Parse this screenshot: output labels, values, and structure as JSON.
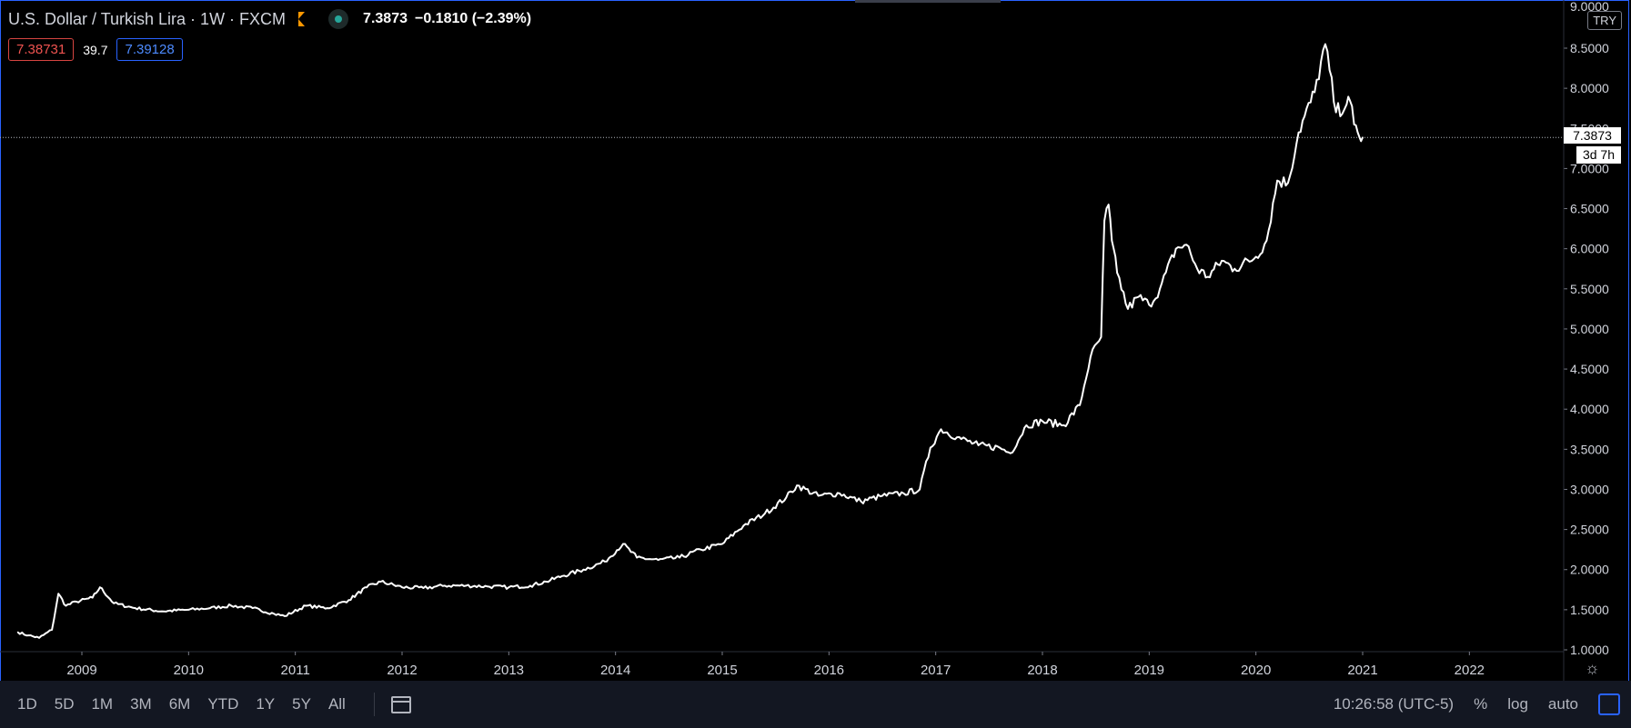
{
  "header": {
    "title": "U.S. Dollar / Turkish Lira · 1W · FXCM",
    "last_price": "7.3873",
    "change": "−0.1810 (−2.39%)",
    "bid": "7.38731",
    "spread": "39.7",
    "ask": "7.39128",
    "currency_badge": "TRY"
  },
  "price_scale": {
    "current_price_label": "7.3873",
    "countdown_label": "3d 7h",
    "axis_top_partial": "9.0000"
  },
  "bottom_toolbar": {
    "ranges": [
      "1D",
      "5D",
      "1M",
      "3M",
      "6M",
      "YTD",
      "1Y",
      "5Y",
      "All"
    ],
    "clock": "10:26:58 (UTC-5)",
    "percent_label": "%",
    "log_label": "log",
    "auto_label": "auto"
  },
  "colors": {
    "background": "#000000",
    "line": "#ffffff",
    "accent_border": "#2962ff",
    "bid": "#ef5350",
    "ask": "#2962ff",
    "flag": "#ff9800",
    "status_dot": "#26a69a"
  },
  "icons": [
    "flag-icon",
    "market-status-dot-icon",
    "calendar-range-icon",
    "gear-icon",
    "fullscreen-icon"
  ],
  "chart_data": {
    "type": "line",
    "title": "U.S. Dollar / Turkish Lira · 1W · FXCM",
    "xlabel": "",
    "ylabel": "",
    "ylim": [
      1.0,
      9.0
    ],
    "xlim": [
      2008.35,
      2022.5
    ],
    "y_ticks": [
      "1.0000",
      "1.5000",
      "2.0000",
      "2.5000",
      "3.0000",
      "3.5000",
      "4.0000",
      "4.5000",
      "5.0000",
      "5.5000",
      "6.0000",
      "6.5000",
      "7.0000",
      "7.5000",
      "8.0000",
      "8.5000"
    ],
    "x_ticks": [
      "2009",
      "2010",
      "2011",
      "2012",
      "2013",
      "2014",
      "2015",
      "2016",
      "2017",
      "2018",
      "2019",
      "2020",
      "2021",
      "2022"
    ],
    "grid": false,
    "current_price": 7.3873,
    "series": [
      {
        "x": [
          2008.4,
          2008.5,
          2008.6,
          2008.72,
          2008.78,
          2008.85,
          2008.95,
          2009.1,
          2009.17,
          2009.3,
          2009.5,
          2009.75,
          2010.0,
          2010.2,
          2010.4,
          2010.6,
          2010.8,
          2010.9,
          2011.1,
          2011.3,
          2011.5,
          2011.67,
          2011.8,
          2012.0,
          2012.2,
          2012.4,
          2012.6,
          2012.8,
          2013.0,
          2013.2,
          2013.35,
          2013.5,
          2013.7,
          2013.9,
          2014.07,
          2014.2,
          2014.4,
          2014.6,
          2014.8,
          2015.0,
          2015.2,
          2015.4,
          2015.6,
          2015.7,
          2015.9,
          2016.1,
          2016.3,
          2016.5,
          2016.7,
          2016.85,
          2016.95,
          2017.05,
          2017.2,
          2017.4,
          2017.6,
          2017.7,
          2017.85,
          2018.0,
          2018.2,
          2018.35,
          2018.45,
          2018.55,
          2018.58,
          2018.62,
          2018.65,
          2018.7,
          2018.8,
          2018.9,
          2019.0,
          2019.1,
          2019.25,
          2019.35,
          2019.45,
          2019.55,
          2019.68,
          2019.8,
          2020.0,
          2020.1,
          2020.2,
          2020.3,
          2020.4,
          2020.55,
          2020.65,
          2020.75,
          2020.85,
          2020.88,
          2020.92,
          2020.97,
          2021.0
        ],
        "y": [
          1.22,
          1.18,
          1.15,
          1.25,
          1.7,
          1.55,
          1.6,
          1.65,
          1.78,
          1.58,
          1.52,
          1.48,
          1.5,
          1.52,
          1.55,
          1.52,
          1.45,
          1.42,
          1.55,
          1.52,
          1.62,
          1.78,
          1.85,
          1.78,
          1.77,
          1.8,
          1.8,
          1.79,
          1.78,
          1.8,
          1.85,
          1.92,
          2.0,
          2.1,
          2.32,
          2.15,
          2.12,
          2.15,
          2.25,
          2.32,
          2.55,
          2.7,
          2.9,
          3.05,
          2.92,
          2.95,
          2.85,
          2.92,
          2.95,
          3.0,
          3.52,
          3.75,
          3.65,
          3.55,
          3.52,
          3.45,
          3.8,
          3.85,
          3.8,
          4.05,
          4.65,
          4.9,
          6.35,
          6.55,
          6.1,
          5.7,
          5.25,
          5.4,
          5.3,
          5.5,
          6.0,
          6.05,
          5.75,
          5.65,
          5.85,
          5.75,
          5.9,
          6.1,
          6.85,
          6.82,
          7.45,
          7.95,
          8.55,
          7.7,
          7.8,
          7.85,
          7.55,
          7.39,
          7.3873
        ]
      }
    ]
  }
}
